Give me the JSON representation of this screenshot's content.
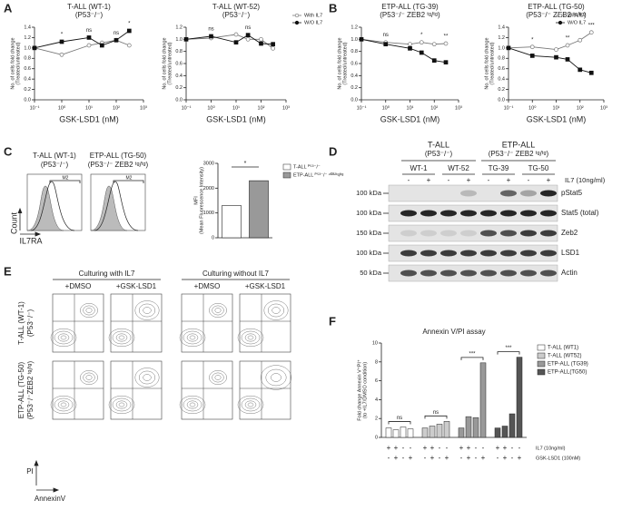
{
  "chart_data": [
    {
      "type": "line",
      "title": "T-ALL (WT-1)",
      "subtitle": "(P53⁻/⁻)",
      "xlabel": "GSK-LSD1 (nM)",
      "ylabel": "No. of cells fold change",
      "ylabel2": "(Treated/untreated)",
      "log_x": true,
      "x": [
        0.1,
        1,
        10,
        30,
        100,
        300
      ],
      "xlim": [
        0.1,
        1000
      ],
      "xticks": [
        {
          "value": 0.1,
          "label": "10⁻¹"
        },
        {
          "value": 1,
          "label": "10⁰"
        },
        {
          "value": 10,
          "label": "10¹"
        },
        {
          "value": 100,
          "label": "10²"
        },
        {
          "value": 1000,
          "label": "10³"
        }
      ],
      "ylim": [
        0,
        1.4
      ],
      "yticks": [
        {
          "value": 0,
          "label": "0.0"
        },
        0.2,
        0.4,
        0.6,
        0.8,
        {
          "value": 1,
          "label": "1.0"
        },
        1.2,
        1.4
      ],
      "series": [
        {
          "name": "With IL7",
          "color": "#777777",
          "marker_fill": "#ffffff",
          "values": [
            1.0,
            0.87,
            1.05,
            1.1,
            1.15,
            1.05
          ]
        },
        {
          "name": "W/O IL7",
          "color": "#111111",
          "marker_fill": "#111111",
          "values": [
            1.0,
            1.12,
            1.2,
            1.05,
            1.15,
            1.33
          ]
        }
      ],
      "legend": false,
      "annotations": [
        {
          "label": "*",
          "x": 1
        },
        {
          "label": "ns",
          "x": 10
        },
        {
          "label": "ns",
          "x": 100
        },
        {
          "label": "*",
          "x": 300
        }
      ]
    },
    {
      "type": "line",
      "title": "T-ALL (WT-52)",
      "subtitle": "(P53⁻/⁻)",
      "xlabel": "GSK-LSD1 (nM)",
      "ylabel": "No. of cells fold change",
      "ylabel2": "(Treated/untreated)",
      "log_x": true,
      "x": [
        0.1,
        1,
        10,
        30,
        100,
        300
      ],
      "xlim": [
        0.1,
        1000
      ],
      "xticks": [
        {
          "value": 0.1,
          "label": "10⁻¹"
        },
        {
          "value": 1,
          "label": "10⁰"
        },
        {
          "value": 10,
          "label": "10¹"
        },
        {
          "value": 100,
          "label": "10²"
        },
        {
          "value": 1000,
          "label": "10³"
        }
      ],
      "ylim": [
        0,
        1.2
      ],
      "yticks": [
        {
          "value": 0,
          "label": "0.0"
        },
        0.2,
        0.4,
        0.6,
        0.8,
        {
          "value": 1,
          "label": "1.0"
        },
        1.2
      ],
      "series": [
        {
          "name": "With IL7",
          "color": "#777777",
          "marker_fill": "#ffffff",
          "values": [
            1.0,
            1.02,
            1.08,
            1.0,
            1.0,
            0.85
          ]
        },
        {
          "name": "W/O IL7",
          "color": "#111111",
          "marker_fill": "#111111",
          "values": [
            1.0,
            1.05,
            0.95,
            1.07,
            0.93,
            0.92
          ]
        }
      ],
      "legend": true,
      "annotations": [
        {
          "label": "ns",
          "x": 1
        },
        {
          "label": "ns",
          "x": 30
        }
      ]
    },
    {
      "type": "line",
      "title": "ETP-ALL (TG-39)",
      "subtitle": "(P53⁻/⁻ ZEB2 ᵗᵍ/ᵗᵍ)",
      "xlabel": "GSK-LSD1 (nM)",
      "ylabel": "No. of cells fold change",
      "ylabel2": "(Treated/untreated)",
      "log_x": true,
      "x": [
        0.1,
        1,
        10,
        30,
        100,
        300
      ],
      "xlim": [
        0.1,
        1000
      ],
      "xticks": [
        {
          "value": 0.1,
          "label": "10⁻¹"
        },
        {
          "value": 1,
          "label": "10⁰"
        },
        {
          "value": 10,
          "label": "10¹"
        },
        {
          "value": 100,
          "label": "10²"
        },
        {
          "value": 1000,
          "label": "10³"
        }
      ],
      "ylim": [
        0,
        1.2
      ],
      "yticks": [
        {
          "value": 0,
          "label": "0.0"
        },
        0.2,
        0.4,
        0.6,
        0.8,
        {
          "value": 1,
          "label": "1.0"
        },
        1.2
      ],
      "series": [
        {
          "name": "With IL7",
          "color": "#777777",
          "marker_fill": "#ffffff",
          "values": [
            1.0,
            0.95,
            0.92,
            0.95,
            0.92,
            0.93
          ]
        },
        {
          "name": "W/O IL7",
          "color": "#111111",
          "marker_fill": "#111111",
          "values": [
            1.0,
            0.92,
            0.85,
            0.78,
            0.65,
            0.62
          ]
        }
      ],
      "legend": false,
      "annotations": [
        {
          "label": "ns",
          "x": 1
        },
        {
          "label": "*",
          "x": 30
        },
        {
          "label": "**",
          "x": 300
        }
      ]
    },
    {
      "type": "line",
      "title": "ETP-ALL (TG-50)",
      "subtitle": "(P53⁻/⁻ ZEB2 ᵗᵍ/ᵗᵍ)",
      "xlabel": "GSK-LSD1 (nM)",
      "ylabel": "No. of cells fold change",
      "ylabel2": "(Treated/untreated)",
      "log_x": true,
      "x": [
        0.1,
        1,
        10,
        30,
        100,
        300
      ],
      "xlim": [
        0.1,
        1000
      ],
      "xticks": [
        {
          "value": 0.1,
          "label": "10⁻¹"
        },
        {
          "value": 1,
          "label": "10⁰"
        },
        {
          "value": 10,
          "label": "10¹"
        },
        {
          "value": 100,
          "label": "10²"
        },
        {
          "value": 1000,
          "label": "10³"
        }
      ],
      "ylim": [
        0,
        1.4
      ],
      "yticks": [
        {
          "value": 0,
          "label": "0.0"
        },
        0.2,
        0.4,
        0.6,
        0.8,
        {
          "value": 1,
          "label": "1.0"
        },
        1.2,
        1.4
      ],
      "series": [
        {
          "name": "With IL7",
          "color": "#777777",
          "marker_fill": "#ffffff",
          "values": [
            1.0,
            1.02,
            0.97,
            1.05,
            1.15,
            1.3
          ]
        },
        {
          "name": "W/O IL7",
          "color": "#111111",
          "marker_fill": "#111111",
          "values": [
            1.0,
            0.85,
            0.82,
            0.78,
            0.58,
            0.52
          ]
        }
      ],
      "legend": true,
      "annotations": [
        {
          "label": "*",
          "x": 1
        },
        {
          "label": "**",
          "x": 30
        },
        {
          "label": "***",
          "x": 300
        }
      ]
    },
    {
      "type": "bar",
      "ylabel": "MFI",
      "ylabel2": "(Mean Fluorescence Intensity)",
      "categories": [
        "T-ALL ᴾ⁵³⁻/⁻",
        "ETP-ALL ᴾ⁵³⁻/⁻ ᶻᴱᴮ²ᵗᵍ/ᵗᵍ"
      ],
      "values": [
        1300,
        2300
      ],
      "colors": [
        "#ffffff",
        "#999999"
      ],
      "ylim": [
        0,
        3000
      ],
      "yticks": [
        0,
        1000,
        2000,
        3000
      ],
      "legend": true,
      "annotation": "*"
    },
    {
      "type": "bar",
      "title": "Annexin V/PI assay",
      "ylabel": "Fold change Annexin V⁺PI⁺",
      "ylabel2": "(to +IL7/DMSO condition)",
      "series": [
        {
          "name": "T-ALL (WT1)",
          "color": "#ffffff",
          "values": [
            1.0,
            0.8,
            1.1,
            0.9
          ]
        },
        {
          "name": "T-ALL (WT52)",
          "color": "#cccccc",
          "values": [
            1.0,
            1.2,
            1.4,
            1.7
          ]
        },
        {
          "name": "ETP-ALL (TG39)",
          "color": "#999999",
          "values": [
            1.0,
            2.2,
            2.1,
            7.9
          ]
        },
        {
          "name": "ETP-ALL(TG50)",
          "color": "#555555",
          "values": [
            1.0,
            1.2,
            2.5,
            8.5
          ]
        }
      ],
      "ylim": [
        0,
        10
      ],
      "yticks": [
        0,
        2,
        4,
        6,
        8,
        10
      ],
      "legend": true,
      "conditions": [
        {
          "name": "IL7 (10ng/ml)",
          "marks": [
            "+",
            "+",
            "-",
            "-"
          ]
        },
        {
          "name": "GSK-LSD1 (100nM)",
          "marks": [
            "-",
            "+",
            "-",
            "+"
          ]
        }
      ],
      "annotations": [
        {
          "label": "ns",
          "group": 0
        },
        {
          "label": "ns",
          "group": 1
        },
        {
          "label": "***",
          "group": 2
        },
        {
          "label": "***",
          "group": 3
        }
      ]
    }
  ],
  "panel_letters": [
    "A",
    "B",
    "C",
    "D",
    "E",
    "F"
  ],
  "flow_c": {
    "titles": [
      [
        "T-ALL (WT-1)",
        "(P53⁻/⁻)"
      ],
      [
        "ETP-ALL (TG-50)",
        "(P53⁻/⁻ ZEB2 ᵗᵍ/ᵗᵍ)"
      ]
    ],
    "gate": "M2",
    "y_axis": "Count",
    "x_axis": "IL7RA"
  },
  "blot": {
    "groups": [
      [
        "T-ALL",
        "(P53⁻/⁻)"
      ],
      [
        "ETP-ALL",
        "(P53⁻/⁻ ZEB2 ᵗᵍ/ᵗᵍ)"
      ]
    ],
    "lines": [
      "WT-1",
      "WT-52",
      "TG-39",
      "TG-50"
    ],
    "signs": [
      "-",
      "+",
      "-",
      "+",
      "-",
      "+",
      "-",
      "+"
    ],
    "treatment": "IL7 (10ng/ml)",
    "rows": [
      {
        "kda": "100 kDa",
        "protein": "pStat5"
      },
      {
        "kda": "100 kDa",
        "protein": "Stat5 (total)"
      },
      {
        "kda": "150 kDa",
        "protein": "Zeb2"
      },
      {
        "kda": "100 kDa",
        "protein": "LSD1"
      },
      {
        "kda": "50 kDa",
        "protein": "Actin"
      }
    ]
  },
  "flow_e": {
    "columns": [
      "Culturing with IL7",
      "Culturing without IL7"
    ],
    "treatments": [
      "+DMSO",
      "+GSK-LSD1"
    ],
    "rows": [
      [
        "T-ALL (WT-1)",
        "(P53⁻/⁻)"
      ],
      [
        "ETP-ALL (TG-50)",
        "(P53⁻/⁻ZEB2 ᵗᵍ/ᵗᵍ)"
      ]
    ],
    "y_axis": "PI",
    "x_axis": "AnnexinV"
  }
}
